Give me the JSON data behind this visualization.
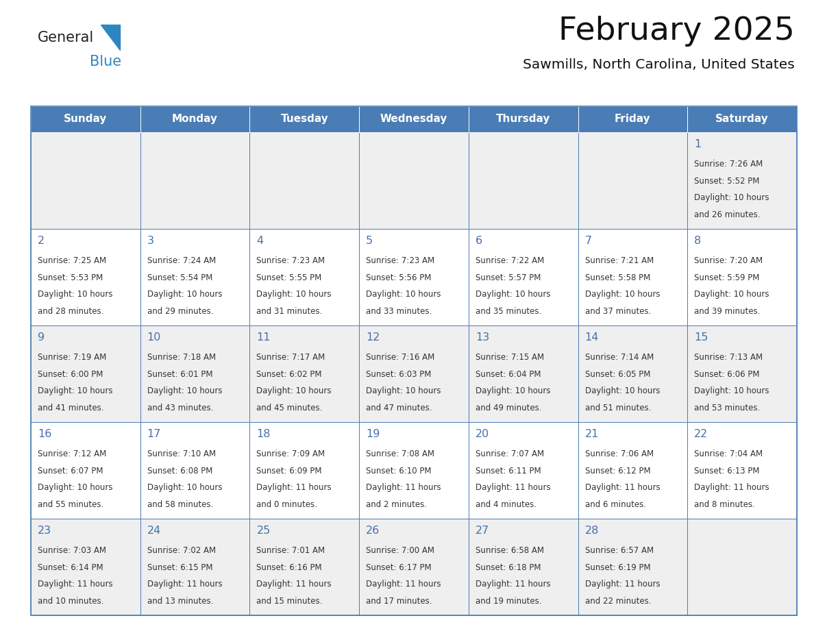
{
  "title": "February 2025",
  "subtitle": "Sawmills, North Carolina, United States",
  "header_bg": "#4a7db5",
  "header_text_color": "#ffffff",
  "day_names": [
    "Sunday",
    "Monday",
    "Tuesday",
    "Wednesday",
    "Thursday",
    "Friday",
    "Saturday"
  ],
  "cell_bg_odd": "#efefef",
  "cell_bg_even": "#ffffff",
  "cell_border_color": "#4a7db5",
  "date_color": "#4472a8",
  "text_color": "#333333",
  "logo_general_color": "#222222",
  "logo_blue_color": "#2e86c1",
  "logo_triangle_color": "#2e86c1",
  "weeks": [
    [
      null,
      null,
      null,
      null,
      null,
      null,
      {
        "day": 1,
        "sunrise": "7:26 AM",
        "sunset": "5:52 PM",
        "daylight": "10 hours and 26 minutes."
      }
    ],
    [
      {
        "day": 2,
        "sunrise": "7:25 AM",
        "sunset": "5:53 PM",
        "daylight": "10 hours and 28 minutes."
      },
      {
        "day": 3,
        "sunrise": "7:24 AM",
        "sunset": "5:54 PM",
        "daylight": "10 hours and 29 minutes."
      },
      {
        "day": 4,
        "sunrise": "7:23 AM",
        "sunset": "5:55 PM",
        "daylight": "10 hours and 31 minutes."
      },
      {
        "day": 5,
        "sunrise": "7:23 AM",
        "sunset": "5:56 PM",
        "daylight": "10 hours and 33 minutes."
      },
      {
        "day": 6,
        "sunrise": "7:22 AM",
        "sunset": "5:57 PM",
        "daylight": "10 hours and 35 minutes."
      },
      {
        "day": 7,
        "sunrise": "7:21 AM",
        "sunset": "5:58 PM",
        "daylight": "10 hours and 37 minutes."
      },
      {
        "day": 8,
        "sunrise": "7:20 AM",
        "sunset": "5:59 PM",
        "daylight": "10 hours and 39 minutes."
      }
    ],
    [
      {
        "day": 9,
        "sunrise": "7:19 AM",
        "sunset": "6:00 PM",
        "daylight": "10 hours and 41 minutes."
      },
      {
        "day": 10,
        "sunrise": "7:18 AM",
        "sunset": "6:01 PM",
        "daylight": "10 hours and 43 minutes."
      },
      {
        "day": 11,
        "sunrise": "7:17 AM",
        "sunset": "6:02 PM",
        "daylight": "10 hours and 45 minutes."
      },
      {
        "day": 12,
        "sunrise": "7:16 AM",
        "sunset": "6:03 PM",
        "daylight": "10 hours and 47 minutes."
      },
      {
        "day": 13,
        "sunrise": "7:15 AM",
        "sunset": "6:04 PM",
        "daylight": "10 hours and 49 minutes."
      },
      {
        "day": 14,
        "sunrise": "7:14 AM",
        "sunset": "6:05 PM",
        "daylight": "10 hours and 51 minutes."
      },
      {
        "day": 15,
        "sunrise": "7:13 AM",
        "sunset": "6:06 PM",
        "daylight": "10 hours and 53 minutes."
      }
    ],
    [
      {
        "day": 16,
        "sunrise": "7:12 AM",
        "sunset": "6:07 PM",
        "daylight": "10 hours and 55 minutes."
      },
      {
        "day": 17,
        "sunrise": "7:10 AM",
        "sunset": "6:08 PM",
        "daylight": "10 hours and 58 minutes."
      },
      {
        "day": 18,
        "sunrise": "7:09 AM",
        "sunset": "6:09 PM",
        "daylight": "11 hours and 0 minutes."
      },
      {
        "day": 19,
        "sunrise": "7:08 AM",
        "sunset": "6:10 PM",
        "daylight": "11 hours and 2 minutes."
      },
      {
        "day": 20,
        "sunrise": "7:07 AM",
        "sunset": "6:11 PM",
        "daylight": "11 hours and 4 minutes."
      },
      {
        "day": 21,
        "sunrise": "7:06 AM",
        "sunset": "6:12 PM",
        "daylight": "11 hours and 6 minutes."
      },
      {
        "day": 22,
        "sunrise": "7:04 AM",
        "sunset": "6:13 PM",
        "daylight": "11 hours and 8 minutes."
      }
    ],
    [
      {
        "day": 23,
        "sunrise": "7:03 AM",
        "sunset": "6:14 PM",
        "daylight": "11 hours and 10 minutes."
      },
      {
        "day": 24,
        "sunrise": "7:02 AM",
        "sunset": "6:15 PM",
        "daylight": "11 hours and 13 minutes."
      },
      {
        "day": 25,
        "sunrise": "7:01 AM",
        "sunset": "6:16 PM",
        "daylight": "11 hours and 15 minutes."
      },
      {
        "day": 26,
        "sunrise": "7:00 AM",
        "sunset": "6:17 PM",
        "daylight": "11 hours and 17 minutes."
      },
      {
        "day": 27,
        "sunrise": "6:58 AM",
        "sunset": "6:18 PM",
        "daylight": "11 hours and 19 minutes."
      },
      {
        "day": 28,
        "sunrise": "6:57 AM",
        "sunset": "6:19 PM",
        "daylight": "11 hours and 22 minutes."
      },
      null
    ]
  ],
  "figsize": [
    11.88,
    9.18
  ],
  "dpi": 100
}
